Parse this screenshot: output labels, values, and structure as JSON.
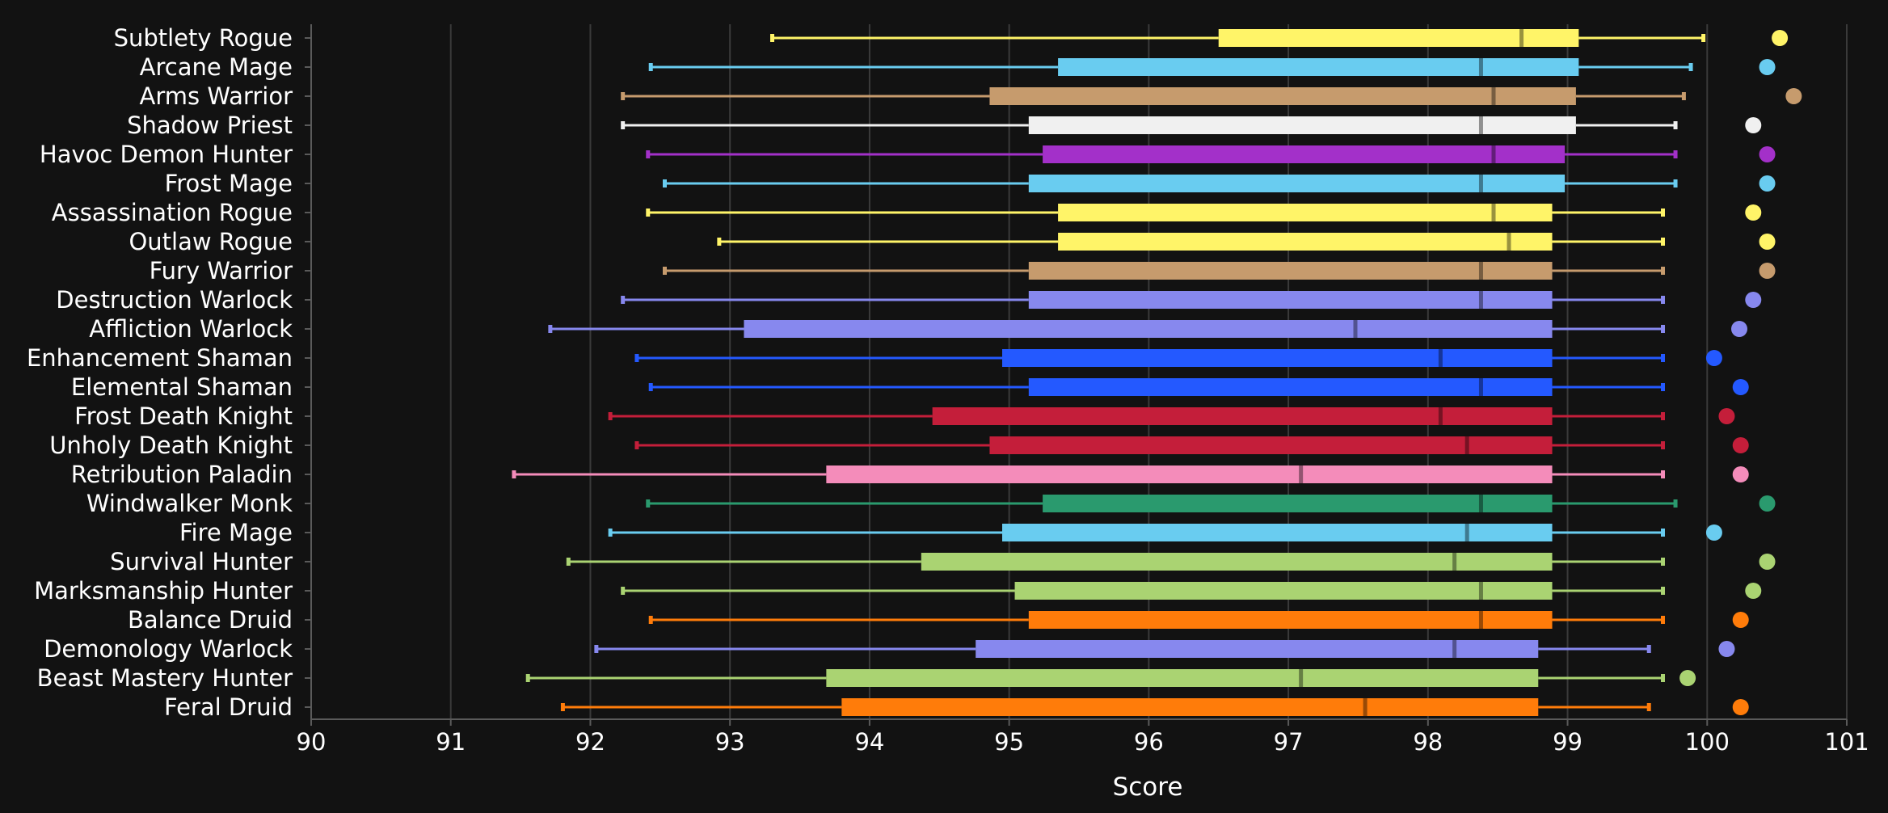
{
  "chart_data": {
    "type": "box",
    "title": "",
    "xlabel": "Score",
    "ylabel": "",
    "xlim": [
      90,
      101
    ],
    "xticks": [
      "90",
      "91",
      "92",
      "93",
      "94",
      "95",
      "96",
      "97",
      "98",
      "99",
      "100",
      "101"
    ],
    "grid": "vertical",
    "legend": "none",
    "series": [
      {
        "name": "Subtlety Rogue",
        "color": "#FFF468",
        "min": 93.3,
        "q1": 96.5,
        "median": 98.67,
        "q3": 99.08,
        "max": 99.97,
        "max_score": 100.52
      },
      {
        "name": "Arcane Mage",
        "color": "#69CCF0",
        "min": 92.43,
        "q1": 95.35,
        "median": 98.38,
        "q3": 99.08,
        "max": 99.88,
        "max_score": 100.43
      },
      {
        "name": "Arms Warrior",
        "color": "#C69B6D",
        "min": 92.23,
        "q1": 94.86,
        "median": 98.47,
        "q3": 99.06,
        "max": 99.83,
        "max_score": 100.62
      },
      {
        "name": "Shadow Priest",
        "color": "#F0F0F0",
        "min": 92.23,
        "q1": 95.14,
        "median": 98.38,
        "q3": 99.06,
        "max": 99.77,
        "max_score": 100.33
      },
      {
        "name": "Havoc Demon Hunter",
        "color": "#A330C9",
        "min": 92.41,
        "q1": 95.24,
        "median": 98.47,
        "q3": 98.98,
        "max": 99.77,
        "max_score": 100.43
      },
      {
        "name": "Frost Mage",
        "color": "#69CCF0",
        "min": 92.53,
        "q1": 95.14,
        "median": 98.38,
        "q3": 98.98,
        "max": 99.77,
        "max_score": 100.43
      },
      {
        "name": "Assassination Rogue",
        "color": "#FFF468",
        "min": 92.41,
        "q1": 95.35,
        "median": 98.47,
        "q3": 98.89,
        "max": 99.68,
        "max_score": 100.33
      },
      {
        "name": "Outlaw Rogue",
        "color": "#FFF468",
        "min": 92.92,
        "q1": 95.35,
        "median": 98.58,
        "q3": 98.89,
        "max": 99.68,
        "max_score": 100.43
      },
      {
        "name": "Fury Warrior",
        "color": "#C69B6D",
        "min": 92.53,
        "q1": 95.14,
        "median": 98.38,
        "q3": 98.89,
        "max": 99.68,
        "max_score": 100.43
      },
      {
        "name": "Destruction Warlock",
        "color": "#8788EE",
        "min": 92.23,
        "q1": 95.14,
        "median": 98.38,
        "q3": 98.89,
        "max": 99.68,
        "max_score": 100.33
      },
      {
        "name": "Affliction Warlock",
        "color": "#8788EE",
        "min": 91.71,
        "q1": 93.1,
        "median": 97.48,
        "q3": 98.89,
        "max": 99.68,
        "max_score": 100.23
      },
      {
        "name": "Enhancement Shaman",
        "color": "#2459FF",
        "min": 92.33,
        "q1": 94.95,
        "median": 98.09,
        "q3": 98.89,
        "max": 99.68,
        "max_score": 100.05
      },
      {
        "name": "Elemental Shaman",
        "color": "#2459FF",
        "min": 92.43,
        "q1": 95.14,
        "median": 98.38,
        "q3": 98.89,
        "max": 99.68,
        "max_score": 100.24
      },
      {
        "name": "Frost Death Knight",
        "color": "#C41E3A",
        "min": 92.14,
        "q1": 94.45,
        "median": 98.09,
        "q3": 98.89,
        "max": 99.68,
        "max_score": 100.14
      },
      {
        "name": "Unholy Death Knight",
        "color": "#C41E3A",
        "min": 92.33,
        "q1": 94.86,
        "median": 98.28,
        "q3": 98.89,
        "max": 99.68,
        "max_score": 100.24
      },
      {
        "name": "Retribution Paladin",
        "color": "#F48CBA",
        "min": 91.45,
        "q1": 93.69,
        "median": 97.09,
        "q3": 98.89,
        "max": 99.68,
        "max_score": 100.24
      },
      {
        "name": "Windwalker Monk",
        "color": "#2A9A6E",
        "min": 92.41,
        "q1": 95.24,
        "median": 98.38,
        "q3": 98.89,
        "max": 99.77,
        "max_score": 100.43
      },
      {
        "name": "Fire Mage",
        "color": "#69CCF0",
        "min": 92.14,
        "q1": 94.95,
        "median": 98.28,
        "q3": 98.89,
        "max": 99.68,
        "max_score": 100.05
      },
      {
        "name": "Survival Hunter",
        "color": "#AAD372",
        "min": 91.84,
        "q1": 94.37,
        "median": 98.19,
        "q3": 98.89,
        "max": 99.68,
        "max_score": 100.43
      },
      {
        "name": "Marksmanship Hunter",
        "color": "#AAD372",
        "min": 92.23,
        "q1": 95.04,
        "median": 98.38,
        "q3": 98.89,
        "max": 99.68,
        "max_score": 100.33
      },
      {
        "name": "Balance Druid",
        "color": "#FF7C0A",
        "min": 92.43,
        "q1": 95.14,
        "median": 98.38,
        "q3": 98.89,
        "max": 99.68,
        "max_score": 100.24
      },
      {
        "name": "Demonology Warlock",
        "color": "#8788EE",
        "min": 92.04,
        "q1": 94.76,
        "median": 98.19,
        "q3": 98.79,
        "max": 99.58,
        "max_score": 100.14
      },
      {
        "name": "Beast Mastery Hunter",
        "color": "#AAD372",
        "min": 91.55,
        "q1": 93.69,
        "median": 97.09,
        "q3": 98.79,
        "max": 99.68,
        "max_score": 99.86
      },
      {
        "name": "Feral Druid",
        "color": "#FF7C0A",
        "min": 91.8,
        "q1": 93.8,
        "median": 97.55,
        "q3": 98.79,
        "max": 99.58,
        "max_score": 100.24
      }
    ]
  }
}
